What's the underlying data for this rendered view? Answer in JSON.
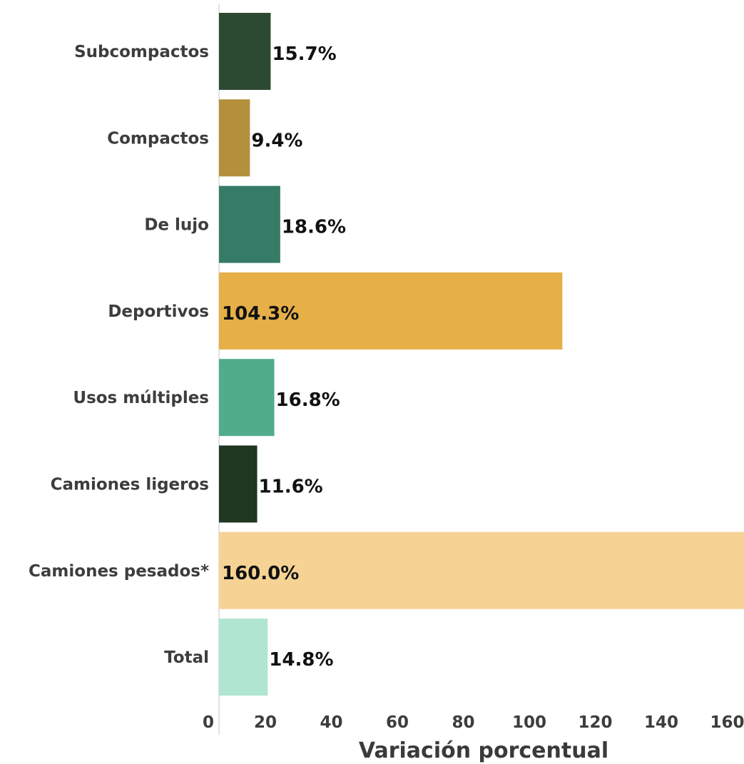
{
  "chart_data": {
    "type": "bar",
    "orientation": "horizontal",
    "categories": [
      "Subcompactos",
      "Compactos",
      "De lujo",
      "Deportivos",
      "Usos múltiples",
      "Camiones ligeros",
      "Camiones pesados*",
      "Total"
    ],
    "values": [
      15.7,
      9.4,
      18.6,
      104.3,
      16.8,
      11.6,
      160.0,
      14.8
    ],
    "value_labels": [
      "15.7%",
      "9.4%",
      "18.6%",
      "104.3%",
      "16.8%",
      "11.6%",
      "160.0%",
      "14.8%"
    ],
    "colors": [
      "#2c4a31",
      "#b48f3c",
      "#367b66",
      "#e6af47",
      "#51ac8b",
      "#1f3620",
      "#f6d394",
      "#b0e6cf"
    ],
    "xlabel": "Variación porcentual",
    "ylabel": "",
    "title": "",
    "xlim": [
      0,
      160
    ],
    "xticks": [
      0,
      20,
      40,
      60,
      80,
      100,
      120,
      140,
      160
    ],
    "grid": false,
    "legend": "none"
  }
}
